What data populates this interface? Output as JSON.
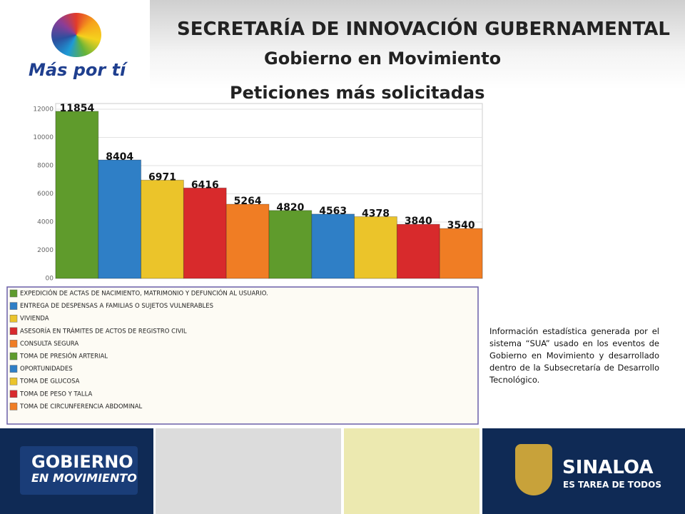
{
  "header": {
    "title": "SECRETARÍA DE INNOVACIÓN GUBERNAMENTAL",
    "subtitle": "Gobierno en Movimiento",
    "logo_text": "Más por tí"
  },
  "chart_data": {
    "type": "bar",
    "title": "Peticiones más solicitadas",
    "categories": [
      "EXPEDICIÓN DE ACTAS DE NACIMIENTO, MATRIMONIO Y DEFUNCIÓN AL USUARIO.",
      "ENTREGA DE DESPENSAS A FAMILIAS O SUJETOS VULNERABLES",
      "VIVIENDA",
      "ASESORÍA EN TRÁMITES DE ACTOS DE REGISTRO CIVIL",
      "CONSULTA SEGURA",
      "TOMA DE PRESIÓN ARTERIAL",
      "OPORTUNIDADES",
      "TOMA DE GLUCOSA",
      "TOMA DE PESO Y TALLA",
      "TOMA DE CIRCUNFERENCIA ABDOMINAL"
    ],
    "values": [
      11854,
      8404,
      6971,
      6416,
      5264,
      4820,
      4563,
      4378,
      3840,
      3540
    ],
    "colors": [
      "#5f9b2c",
      "#2f7fc6",
      "#ebc42a",
      "#d82a2c",
      "#f07d24",
      "#5f9b2c",
      "#2f7fc6",
      "#ebc42a",
      "#d82a2c",
      "#f07d24"
    ],
    "ylim": [
      0,
      12000
    ],
    "yticks": [
      {
        "value": 0,
        "label": "00"
      },
      2000,
      4000,
      6000,
      8000,
      10000,
      12000
    ],
    "grid": true
  },
  "note": "Información estadística generada por el sistema “SUA” usado en los eventos de Gobierno en Movimiento y desarrollado dentro de la Subsecretaría de Desarrollo Tecnológico.",
  "footer": {
    "left_line1": "GOBIERNO",
    "left_line2": "EN MOVIMIENTO",
    "right_line1": "SINALOA",
    "right_line2": "ES TAREA DE TODOS"
  }
}
